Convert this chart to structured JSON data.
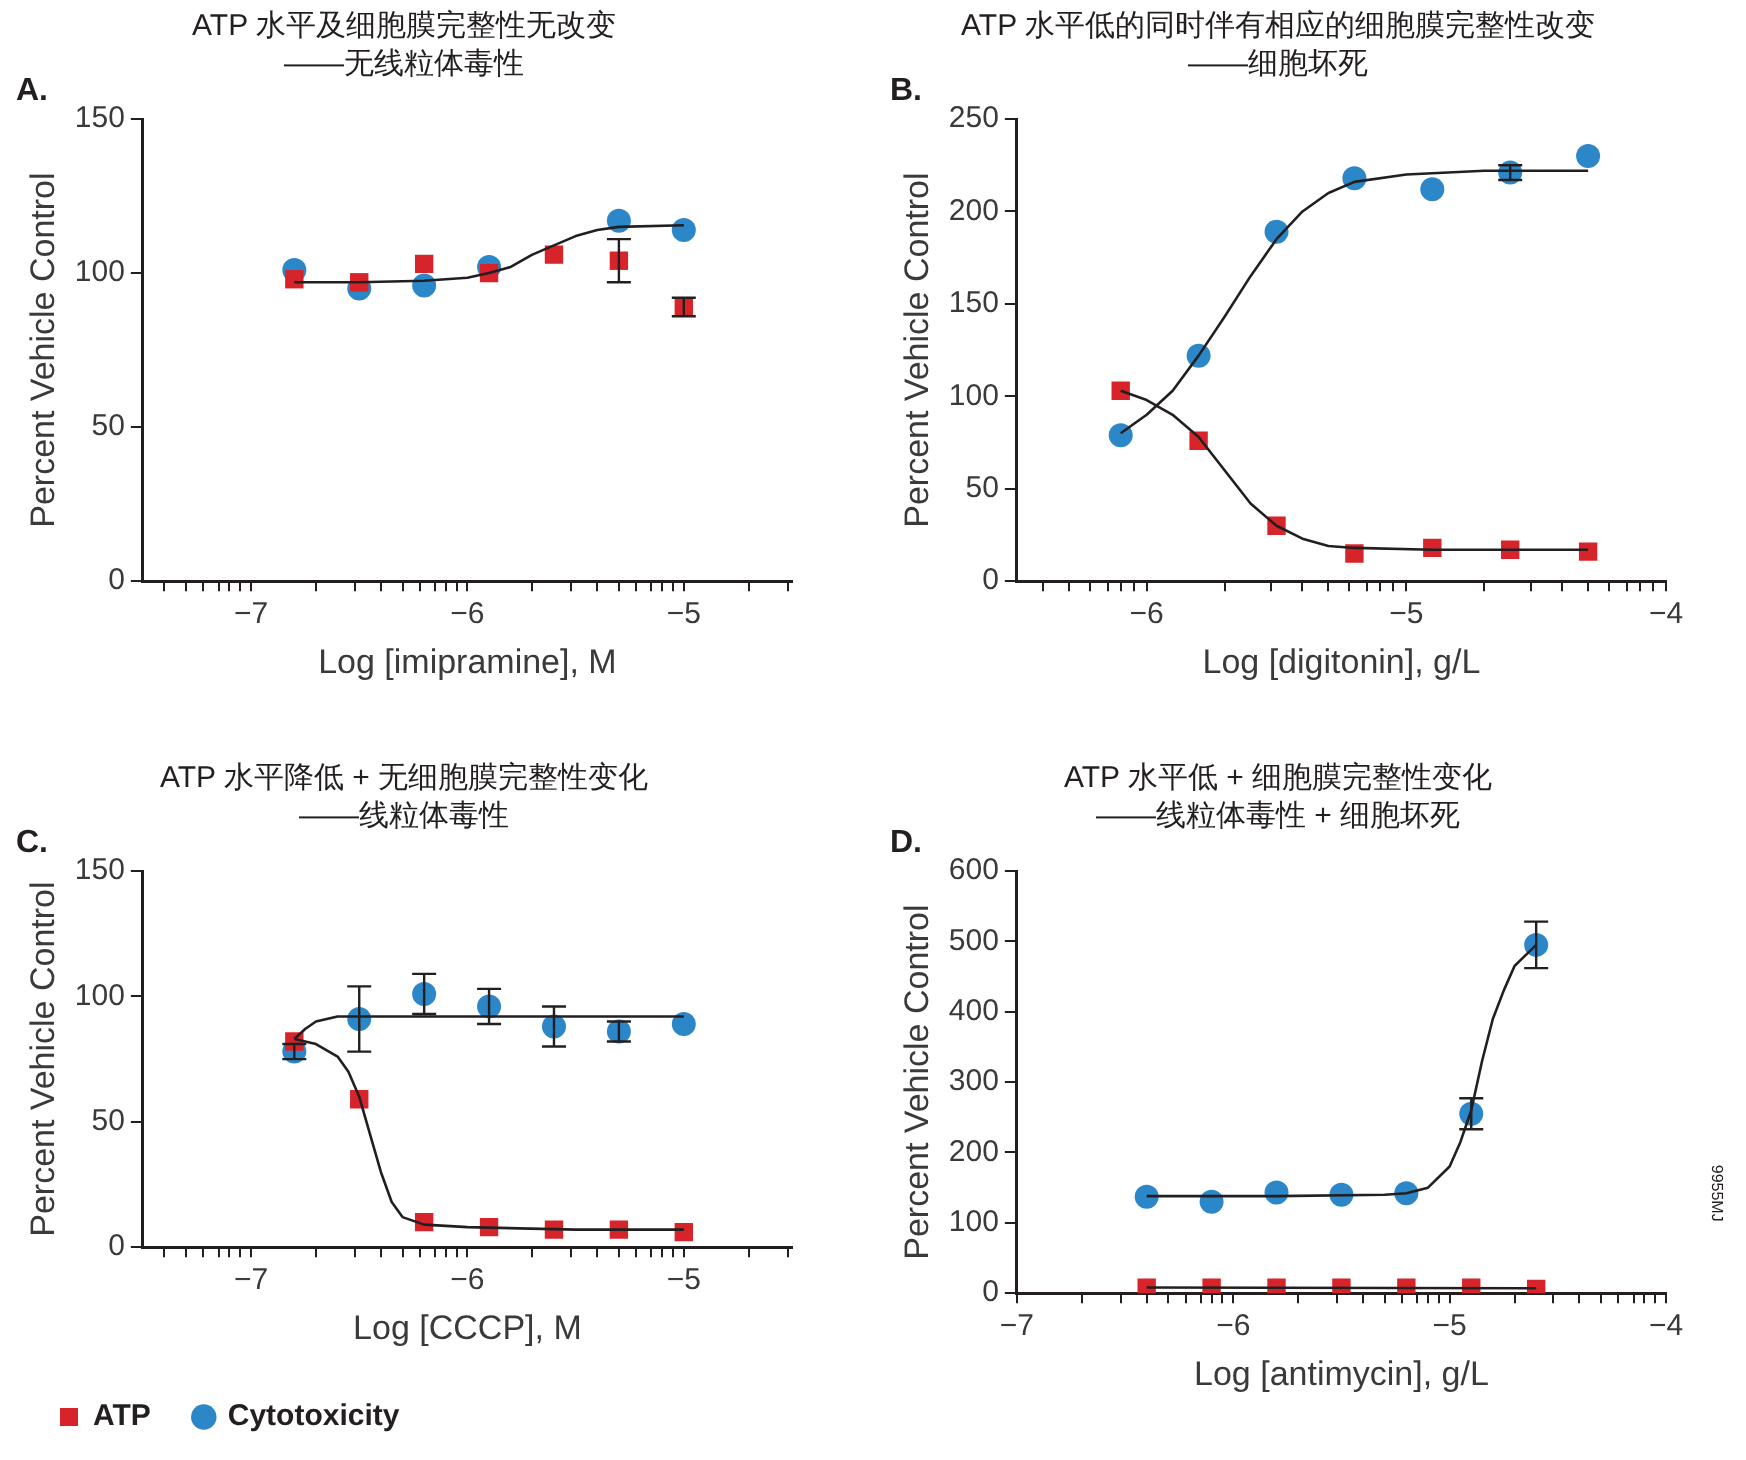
{
  "chart_data": [
    {
      "type": "scatter",
      "title": "ATP 水平及细胞膜完整性无改变\n——无线粒体毒性",
      "xlabel": "Log [imipramine], M",
      "ylabel": "Percent Vehicle Control",
      "annotations": [
        "A."
      ],
      "xlim": [
        -7.5,
        -4.5
      ],
      "xticks": [
        {
          "value": -7.4,
          "label": null
        },
        {
          "value": -7.3,
          "label": null
        },
        {
          "value": -7.22,
          "label": null
        },
        {
          "value": -7.15,
          "label": null
        },
        {
          "value": -7.1,
          "label": null
        },
        {
          "value": -7.05,
          "label": null
        },
        {
          "value": -7,
          "label": "−7"
        },
        {
          "value": -6.7,
          "label": null
        },
        {
          "value": -6.52,
          "label": null
        },
        {
          "value": -6.4,
          "label": null
        },
        {
          "value": -6.3,
          "label": null
        },
        {
          "value": -6.22,
          "label": null
        },
        {
          "value": -6.15,
          "label": null
        },
        {
          "value": -6.1,
          "label": null
        },
        {
          "value": -6.05,
          "label": null
        },
        {
          "value": -6,
          "label": "−6"
        },
        {
          "value": -5.7,
          "label": null
        },
        {
          "value": -5.52,
          "label": null
        },
        {
          "value": -5.4,
          "label": null
        },
        {
          "value": -5.3,
          "label": null
        },
        {
          "value": -5.22,
          "label": null
        },
        {
          "value": -5.15,
          "label": null
        },
        {
          "value": -5.1,
          "label": null
        },
        {
          "value": -5.05,
          "label": null
        },
        {
          "value": -5,
          "label": "−5"
        },
        {
          "value": -4.7,
          "label": null
        },
        {
          "value": -4.52,
          "label": null
        }
      ],
      "ylim": [
        0,
        150
      ],
      "yticks": [
        0,
        50,
        100,
        150
      ],
      "grid": false,
      "series": [
        {
          "type": "line",
          "color": "#231f20",
          "marker": "none",
          "x": [
            -6.8,
            -6.5,
            -6.2,
            -6.0,
            -5.9,
            -5.8,
            -5.7,
            -5.6,
            -5.5,
            -5.4,
            -5.3,
            -5.0
          ],
          "values": [
            97,
            97,
            97.5,
            98.5,
            100,
            102,
            106,
            109,
            112,
            114,
            115,
            115.5
          ]
        },
        {
          "type": "scatter",
          "color": "#d7242b",
          "marker": "square",
          "x": [
            -6.8,
            -6.5,
            -6.2,
            -5.9,
            -5.6,
            -5.3,
            -5.0
          ],
          "values": [
            98,
            97,
            103,
            100,
            106,
            104,
            89
          ],
          "errors": [
            null,
            null,
            null,
            null,
            null,
            7,
            3
          ]
        },
        {
          "type": "scatter",
          "color": "#2c87c8",
          "marker": "circle",
          "x": [
            -6.8,
            -6.5,
            -6.2,
            -5.9,
            -5.6,
            -5.3,
            -5.0
          ],
          "values": [
            101,
            95,
            96,
            102,
            null,
            117,
            114
          ]
        }
      ]
    },
    {
      "type": "scatter",
      "title": "ATP 水平低的同时伴有相应的细胞膜完整性改变\n——细胞坏死",
      "xlabel": "Log [digitonin], g/L",
      "ylabel": "Percent Vehicle Control",
      "annotations": [
        "B."
      ],
      "xlim": [
        -6.5,
        -4
      ],
      "xticks": [
        {
          "value": -6.4,
          "label": null
        },
        {
          "value": -6.3,
          "label": null
        },
        {
          "value": -6.22,
          "label": null
        },
        {
          "value": -6.15,
          "label": null
        },
        {
          "value": -6.1,
          "label": null
        },
        {
          "value": -6.05,
          "label": null
        },
        {
          "value": -6,
          "label": "−6"
        },
        {
          "value": -5.7,
          "label": null
        },
        {
          "value": -5.52,
          "label": null
        },
        {
          "value": -5.4,
          "label": null
        },
        {
          "value": -5.3,
          "label": null
        },
        {
          "value": -5.22,
          "label": null
        },
        {
          "value": -5.15,
          "label": null
        },
        {
          "value": -5.1,
          "label": null
        },
        {
          "value": -5.05,
          "label": null
        },
        {
          "value": -5,
          "label": "−5"
        },
        {
          "value": -4.7,
          "label": null
        },
        {
          "value": -4.52,
          "label": null
        },
        {
          "value": -4.4,
          "label": null
        },
        {
          "value": -4.3,
          "label": null
        },
        {
          "value": -4.22,
          "label": null
        },
        {
          "value": -4.15,
          "label": null
        },
        {
          "value": -4.1,
          "label": null
        },
        {
          "value": -4.05,
          "label": null
        },
        {
          "value": -4,
          "label": "−4"
        }
      ],
      "ylim": [
        0,
        250
      ],
      "yticks": [
        0,
        50,
        100,
        150,
        200,
        250
      ],
      "grid": false,
      "series": [
        {
          "type": "line",
          "color": "#231f20",
          "marker": "none",
          "x": [
            -6.1,
            -6.0,
            -5.9,
            -5.8,
            -5.7,
            -5.6,
            -5.5,
            -5.4,
            -5.3,
            -5.2,
            -5.0,
            -4.7,
            -4.3
          ],
          "values": [
            80,
            90,
            103,
            122,
            143,
            165,
            185,
            200,
            210,
            216,
            220,
            222,
            222
          ]
        },
        {
          "type": "line",
          "color": "#231f20",
          "marker": "none",
          "x": [
            -6.1,
            -6.0,
            -5.9,
            -5.8,
            -5.7,
            -5.6,
            -5.5,
            -5.4,
            -5.3,
            -5.2,
            -4.9,
            -4.3
          ],
          "values": [
            103,
            98,
            90,
            78,
            60,
            42,
            30,
            23,
            19,
            18,
            17,
            17
          ]
        },
        {
          "type": "scatter",
          "color": "#d7242b",
          "marker": "square",
          "x": [
            -6.1,
            -5.8,
            -5.5,
            -5.2,
            -4.9,
            -4.6,
            -4.3
          ],
          "values": [
            103,
            76,
            30,
            15,
            18,
            17,
            16
          ]
        },
        {
          "type": "scatter",
          "color": "#2c87c8",
          "marker": "circle",
          "x": [
            -6.1,
            -5.8,
            -5.5,
            -5.2,
            -4.9,
            -4.6,
            -4.3
          ],
          "values": [
            79,
            122,
            189,
            218,
            212,
            221,
            230
          ],
          "errors": [
            null,
            null,
            null,
            null,
            null,
            4,
            null
          ]
        }
      ]
    },
    {
      "type": "scatter",
      "title": "ATP 水平降低 + 无细胞膜完整性变化\n——线粒体毒性",
      "xlabel": "Log [CCCP], M",
      "ylabel": "Percent Vehicle Control",
      "annotations": [
        "C."
      ],
      "legend": "bottom",
      "xlim": [
        -7.5,
        -4.5
      ],
      "xticks": [
        {
          "value": -7.4,
          "label": null
        },
        {
          "value": -7.3,
          "label": null
        },
        {
          "value": -7.22,
          "label": null
        },
        {
          "value": -7.15,
          "label": null
        },
        {
          "value": -7.1,
          "label": null
        },
        {
          "value": -7.05,
          "label": null
        },
        {
          "value": -7,
          "label": "−7"
        },
        {
          "value": -6.7,
          "label": null
        },
        {
          "value": -6.52,
          "label": null
        },
        {
          "value": -6.4,
          "label": null
        },
        {
          "value": -6.3,
          "label": null
        },
        {
          "value": -6.22,
          "label": null
        },
        {
          "value": -6.15,
          "label": null
        },
        {
          "value": -6.1,
          "label": null
        },
        {
          "value": -6.05,
          "label": null
        },
        {
          "value": -6,
          "label": "−6"
        },
        {
          "value": -5.7,
          "label": null
        },
        {
          "value": -5.52,
          "label": null
        },
        {
          "value": -5.4,
          "label": null
        },
        {
          "value": -5.3,
          "label": null
        },
        {
          "value": -5.22,
          "label": null
        },
        {
          "value": -5.15,
          "label": null
        },
        {
          "value": -5.1,
          "label": null
        },
        {
          "value": -5.05,
          "label": null
        },
        {
          "value": -5,
          "label": "−5"
        },
        {
          "value": -4.7,
          "label": null
        },
        {
          "value": -4.52,
          "label": null
        }
      ],
      "ylim": [
        0,
        150
      ],
      "yticks": [
        0,
        50,
        100,
        150
      ],
      "grid": false,
      "series": [
        {
          "type": "line",
          "color": "#231f20",
          "marker": "none",
          "x": [
            -6.8,
            -6.75,
            -6.7,
            -6.6,
            -6.5,
            -5.0
          ],
          "values": [
            83,
            87,
            90,
            92,
            92,
            92
          ]
        },
        {
          "type": "line",
          "color": "#231f20",
          "marker": "none",
          "x": [
            -6.8,
            -6.7,
            -6.6,
            -6.55,
            -6.5,
            -6.45,
            -6.4,
            -6.35,
            -6.3,
            -6.2,
            -6.0,
            -5.5,
            -5.0
          ],
          "values": [
            83,
            81,
            76,
            70,
            60,
            45,
            30,
            18,
            12,
            9,
            8,
            7,
            7
          ]
        },
        {
          "type": "scatter",
          "name": "ATP",
          "color": "#d7242b",
          "marker": "square",
          "x": [
            -6.8,
            -6.5,
            -6.2,
            -5.9,
            -5.6,
            -5.3,
            -5.0
          ],
          "values": [
            82,
            59,
            10,
            8,
            7,
            7,
            6
          ]
        },
        {
          "type": "scatter",
          "name": "Cytotoxicity",
          "color": "#2c87c8",
          "marker": "circle",
          "x": [
            -6.8,
            -6.5,
            -6.2,
            -5.9,
            -5.6,
            -5.3,
            -5.0
          ],
          "values": [
            78,
            91,
            101,
            96,
            88,
            86,
            89
          ],
          "errors": [
            3,
            13,
            8,
            7,
            8,
            4,
            null
          ]
        }
      ]
    },
    {
      "type": "scatter",
      "title": "ATP 水平低 + 细胞膜完整性变化\n——线粒体毒性 + 细胞坏死",
      "xlabel": "Log [antimycin], g/L",
      "ylabel": "Percent Vehicle Control",
      "annotations": [
        "D.",
        "9955MJ"
      ],
      "xlim": [
        -7,
        -4
      ],
      "xticks": [
        {
          "value": -7,
          "label": "−7"
        },
        {
          "value": -6.7,
          "label": null
        },
        {
          "value": -6.52,
          "label": null
        },
        {
          "value": -6.4,
          "label": null
        },
        {
          "value": -6.3,
          "label": null
        },
        {
          "value": -6.22,
          "label": null
        },
        {
          "value": -6.15,
          "label": null
        },
        {
          "value": -6.1,
          "label": null
        },
        {
          "value": -6.05,
          "label": null
        },
        {
          "value": -6,
          "label": "−6"
        },
        {
          "value": -5.7,
          "label": null
        },
        {
          "value": -5.52,
          "label": null
        },
        {
          "value": -5.4,
          "label": null
        },
        {
          "value": -5.3,
          "label": null
        },
        {
          "value": -5.22,
          "label": null
        },
        {
          "value": -5.15,
          "label": null
        },
        {
          "value": -5.1,
          "label": null
        },
        {
          "value": -5.05,
          "label": null
        },
        {
          "value": -5,
          "label": "−5"
        },
        {
          "value": -4.7,
          "label": null
        },
        {
          "value": -4.52,
          "label": null
        },
        {
          "value": -4.4,
          "label": null
        },
        {
          "value": -4.3,
          "label": null
        },
        {
          "value": -4.22,
          "label": null
        },
        {
          "value": -4.15,
          "label": null
        },
        {
          "value": -4.1,
          "label": null
        },
        {
          "value": -4.05,
          "label": null
        },
        {
          "value": -4,
          "label": "−4"
        }
      ],
      "ylim": [
        0,
        600
      ],
      "yticks": [
        0,
        100,
        200,
        300,
        400,
        500,
        600
      ],
      "grid": false,
      "series": [
        {
          "type": "line",
          "color": "#231f20",
          "marker": "none",
          "x": [
            -6.4,
            -5.8,
            -5.3,
            -5.2,
            -5.1,
            -5.0,
            -4.95,
            -4.9,
            -4.85,
            -4.8,
            -4.75,
            -4.7,
            -4.6
          ],
          "values": [
            138,
            138,
            140,
            142,
            150,
            180,
            215,
            260,
            330,
            390,
            430,
            465,
            495
          ]
        },
        {
          "type": "line",
          "color": "#231f20",
          "marker": "none",
          "x": [
            -6.4,
            -4.6
          ],
          "values": [
            8,
            7
          ]
        },
        {
          "type": "scatter",
          "color": "#d7242b",
          "marker": "square",
          "x": [
            -6.4,
            -6.1,
            -5.8,
            -5.5,
            -5.2,
            -4.9,
            -4.6
          ],
          "values": [
            8,
            8,
            8,
            8,
            8,
            8,
            6
          ]
        },
        {
          "type": "scatter",
          "color": "#2c87c8",
          "marker": "circle",
          "x": [
            -6.4,
            -6.1,
            -5.8,
            -5.5,
            -5.2,
            -4.9,
            -4.6
          ],
          "values": [
            137,
            130,
            143,
            140,
            142,
            255,
            495
          ],
          "errors": [
            null,
            null,
            null,
            null,
            null,
            22,
            33
          ]
        }
      ]
    }
  ]
}
